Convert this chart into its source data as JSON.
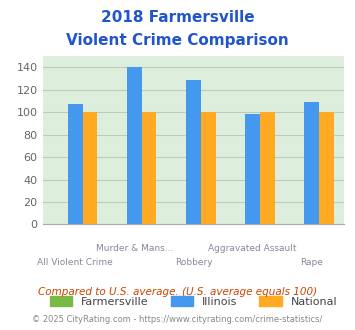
{
  "title_line1": "2018 Farmersville",
  "title_line2": "Violent Crime Comparison",
  "farmersville": [
    0,
    0,
    0,
    0,
    0
  ],
  "illinois": [
    107,
    140,
    129,
    98,
    109
  ],
  "national": [
    100,
    100,
    100,
    100,
    100
  ],
  "farmersville_color": "#77bb44",
  "illinois_color": "#4499ee",
  "national_color": "#ffaa22",
  "ylim": [
    0,
    150
  ],
  "yticks": [
    0,
    20,
    40,
    60,
    80,
    100,
    120,
    140
  ],
  "bg_color": "#ddeedd",
  "grid_color": "#bbccbb",
  "title_color": "#2255cc",
  "legend_labels": [
    "Farmersville",
    "Illinois",
    "National"
  ],
  "note_text": "Compared to U.S. average. (U.S. average equals 100)",
  "note_color": "#cc4400",
  "footer_text": "© 2025 CityRating.com - https://www.cityrating.com/crime-statistics/",
  "footer_color": "#888888",
  "bar_width": 0.25,
  "top_labels": [
    "",
    "Murder & Mans...",
    "",
    "Aggravated Assault",
    ""
  ],
  "bottom_labels": [
    "All Violent Crime",
    "",
    "Robbery",
    "",
    "Rape"
  ]
}
